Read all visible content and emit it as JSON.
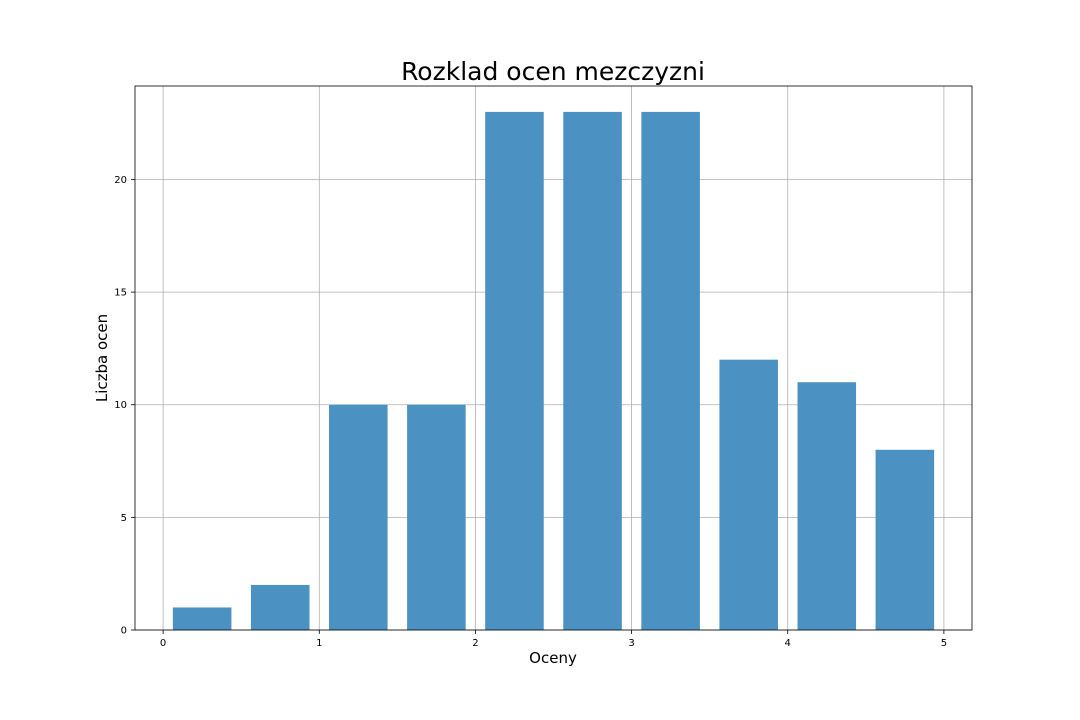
{
  "chart_data": {
    "type": "bar",
    "title": "Rozklad ocen mezczyzni",
    "xlabel": "Oceny",
    "ylabel": "Liczba ocen",
    "bins": [
      {
        "x0": 0.0,
        "x1": 0.5,
        "value": 1
      },
      {
        "x0": 0.5,
        "x1": 1.0,
        "value": 2
      },
      {
        "x0": 1.0,
        "x1": 1.5,
        "value": 10
      },
      {
        "x0": 1.5,
        "x1": 2.0,
        "value": 10
      },
      {
        "x0": 2.0,
        "x1": 2.5,
        "value": 23
      },
      {
        "x0": 2.5,
        "x1": 3.0,
        "value": 23
      },
      {
        "x0": 3.0,
        "x1": 3.5,
        "value": 23
      },
      {
        "x0": 3.5,
        "x1": 4.0,
        "value": 12
      },
      {
        "x0": 4.0,
        "x1": 4.5,
        "value": 11
      },
      {
        "x0": 4.5,
        "x1": 5.0,
        "value": 8
      }
    ],
    "bar_width_fraction": 0.75,
    "xlim": [
      -0.18,
      5.18
    ],
    "ylim": [
      0,
      24.15
    ],
    "xticks": [
      "0",
      "1",
      "2",
      "3",
      "4",
      "5"
    ],
    "yticks": [
      "0",
      "5",
      "10",
      "15",
      "20"
    ],
    "bar_color": "#4b92c3",
    "grid": true
  }
}
